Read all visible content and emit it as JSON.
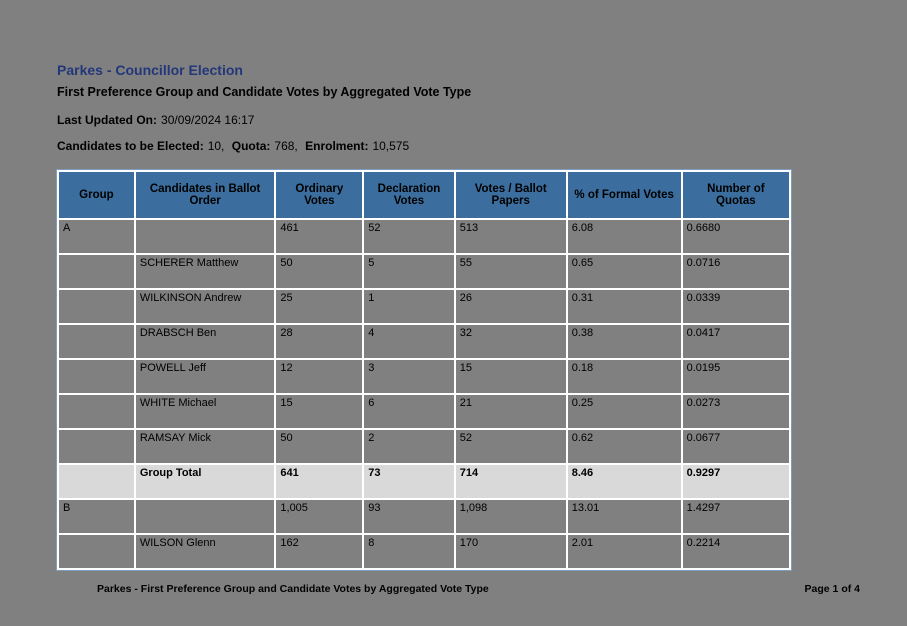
{
  "header": {
    "title": "Parkes - Councillor Election",
    "subtitle": "First Preference Group and Candidate Votes by Aggregated Vote Type",
    "last_updated_label": "Last Updated On:",
    "last_updated_value": "30/09/2024 16:17",
    "elected_label": "Candidates to be Elected:",
    "elected_value": "10,",
    "quota_label": "Quota:",
    "quota_value": "768,",
    "enrolment_label": "Enrolment:",
    "enrolment_value": "10,575"
  },
  "table": {
    "headers": [
      "Group",
      "Candidates in Ballot Order",
      "Ordinary Votes",
      "Declaration Votes",
      "Votes / Ballot Papers",
      "% of Formal Votes",
      "Number of Quotas"
    ],
    "rows": [
      {
        "type": "group",
        "group": "A",
        "candidate": "",
        "ordinary": "461",
        "declaration": "52",
        "ballot": "513",
        "formal_pct": "6.08",
        "quotas": "0.6680"
      },
      {
        "type": "candidate",
        "group": "",
        "candidate": "SCHERER Matthew",
        "ordinary": "50",
        "declaration": "5",
        "ballot": "55",
        "formal_pct": "0.65",
        "quotas": "0.0716"
      },
      {
        "type": "candidate",
        "group": "",
        "candidate": "WILKINSON Andrew",
        "ordinary": "25",
        "declaration": "1",
        "ballot": "26",
        "formal_pct": "0.31",
        "quotas": "0.0339"
      },
      {
        "type": "candidate",
        "group": "",
        "candidate": "DRABSCH Ben",
        "ordinary": "28",
        "declaration": "4",
        "ballot": "32",
        "formal_pct": "0.38",
        "quotas": "0.0417"
      },
      {
        "type": "candidate",
        "group": "",
        "candidate": "POWELL Jeff",
        "ordinary": "12",
        "declaration": "3",
        "ballot": "15",
        "formal_pct": "0.18",
        "quotas": "0.0195"
      },
      {
        "type": "candidate",
        "group": "",
        "candidate": "WHITE Michael",
        "ordinary": "15",
        "declaration": "6",
        "ballot": "21",
        "formal_pct": "0.25",
        "quotas": "0.0273"
      },
      {
        "type": "candidate",
        "group": "",
        "candidate": "RAMSAY Mick",
        "ordinary": "50",
        "declaration": "2",
        "ballot": "52",
        "formal_pct": "0.62",
        "quotas": "0.0677"
      },
      {
        "type": "total",
        "group": "",
        "candidate": "Group Total",
        "ordinary": "641",
        "declaration": "73",
        "ballot": "714",
        "formal_pct": "8.46",
        "quotas": "0.9297"
      },
      {
        "type": "group",
        "group": "B",
        "candidate": "",
        "ordinary": "1,005",
        "declaration": "93",
        "ballot": "1,098",
        "formal_pct": "13.01",
        "quotas": "1.4297"
      },
      {
        "type": "candidate",
        "group": "",
        "candidate": "WILSON Glenn",
        "ordinary": "162",
        "declaration": "8",
        "ballot": "170",
        "formal_pct": "2.01",
        "quotas": "0.2214"
      }
    ]
  },
  "footer": {
    "left": "Parkes - First Preference Group and Candidate Votes by Aggregated Vote Type",
    "right": "Page 1 of 4"
  },
  "colors": {
    "page_background": "#808080",
    "title_text": "#23377A",
    "table_header_background": "#3B6E9E",
    "group_total_row_background": "#D9D9D9",
    "grid_lines": "#FFFFFF",
    "table_outline": "#7F9DBE"
  }
}
